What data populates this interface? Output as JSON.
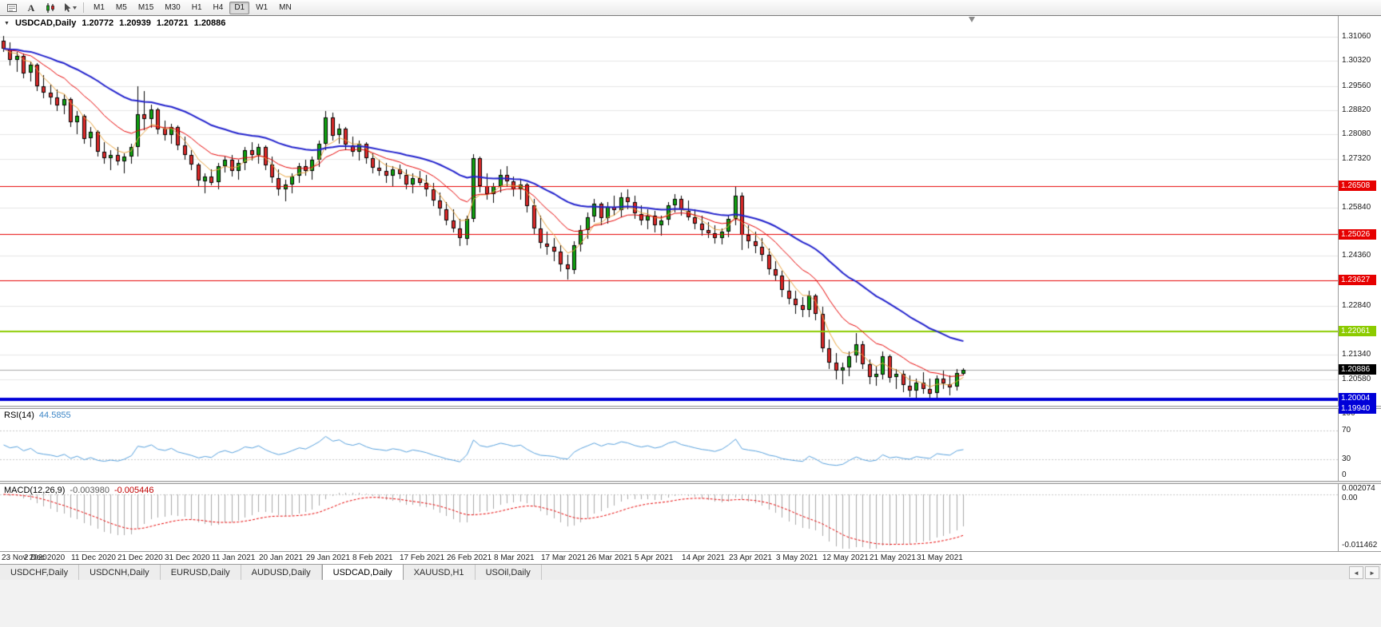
{
  "toolbar": {
    "icons": [
      {
        "name": "charts-list-icon"
      },
      {
        "name": "text-tool-icon"
      },
      {
        "name": "candles-chart-icon"
      },
      {
        "name": "cursor-tool-icon"
      }
    ],
    "timeframes": [
      {
        "label": "M1",
        "active": false
      },
      {
        "label": "M5",
        "active": false
      },
      {
        "label": "M15",
        "active": false
      },
      {
        "label": "M30",
        "active": false
      },
      {
        "label": "H1",
        "active": false
      },
      {
        "label": "H4",
        "active": false
      },
      {
        "label": "D1",
        "active": true
      },
      {
        "label": "W1",
        "active": false
      },
      {
        "label": "MN",
        "active": false
      }
    ]
  },
  "chart": {
    "symbol_label": "USDCAD,Daily",
    "symbol_dropdown_icon": "▼",
    "ohlc": {
      "open": "1.20772",
      "high": "1.20939",
      "low": "1.20721",
      "close": "1.20886"
    },
    "colors": {
      "up": "#0fa30f",
      "down": "#dd2a2a",
      "outline": "#000000",
      "grid": "#e6e6e6"
    },
    "bid_line": {
      "value": 1.20886,
      "color": "#a8a8a8"
    },
    "hlines": [
      {
        "value": 1.26508,
        "color": "#e60000",
        "width": 1
      },
      {
        "value": 1.25026,
        "color": "#e60000",
        "width": 1
      },
      {
        "value": 1.23627,
        "color": "#e60000",
        "width": 1
      },
      {
        "value": 1.22061,
        "color": "#8ccb00",
        "width": 2
      },
      {
        "value": 1.20004,
        "color": "#0000d8",
        "width": 2
      },
      {
        "value": 1.1994,
        "color": "#0000d8",
        "width": 2
      }
    ],
    "price_axis": {
      "ticks": [
        {
          "label": "1.31060",
          "value": 1.3106
        },
        {
          "label": "1.30320",
          "value": 1.3032
        },
        {
          "label": "1.29560",
          "value": 1.2956
        },
        {
          "label": "1.28820",
          "value": 1.2882
        },
        {
          "label": "1.28080",
          "value": 1.2808
        },
        {
          "label": "1.27320",
          "value": 1.2732
        },
        {
          "label": "1.25840",
          "value": 1.2584
        },
        {
          "label": "1.24360",
          "value": 1.2436
        },
        {
          "label": "1.22840",
          "value": 1.2284
        },
        {
          "label": "1.21340",
          "value": 1.2134
        },
        {
          "label": "1.20580",
          "value": 1.2058
        }
      ],
      "line_labels": [
        {
          "label": "1.26508",
          "value": 1.26508,
          "bg": "#e60000"
        },
        {
          "label": "1.25026",
          "value": 1.25026,
          "bg": "#e60000"
        },
        {
          "label": "1.23627",
          "value": 1.23627,
          "bg": "#e60000"
        },
        {
          "label": "1.22061",
          "value": 1.22061,
          "bg": "#8ccb00"
        },
        {
          "label": "1.20886",
          "value": 1.20886,
          "bg": "#000000"
        },
        {
          "label": "1.20004",
          "value": 1.20004,
          "bg": "#0000d8"
        },
        {
          "label": "1.19940",
          "value": 1.1994,
          "bg": "#0000d8"
        }
      ]
    }
  },
  "chart_data": {
    "type": "candlestick",
    "symbol": "USDCAD",
    "timeframe": "Daily",
    "ylim": [
      1.1978,
      1.317
    ],
    "overlays": [
      {
        "name": "MA fast",
        "period": 5,
        "color": "#e8a33d",
        "width": 1
      },
      {
        "name": "MA medium",
        "period": 13,
        "color": "#e60000",
        "width": 1
      },
      {
        "name": "MA slow",
        "period": 34,
        "color": "#2222cc",
        "width": 2
      }
    ],
    "date_labels": [
      {
        "label": "23 Nov 2020",
        "index": 0
      },
      {
        "label": "2 Dec 2020",
        "index": 7
      },
      {
        "label": "11 Dec 2020",
        "index": 14
      },
      {
        "label": "21 Dec 2020",
        "index": 21
      },
      {
        "label": "31 Dec 2020",
        "index": 28
      },
      {
        "label": "11 Jan 2021",
        "index": 35
      },
      {
        "label": "20 Jan 2021",
        "index": 42
      },
      {
        "label": "29 Jan 2021",
        "index": 49
      },
      {
        "label": "8 Feb 2021",
        "index": 56
      },
      {
        "label": "17 Feb 2021",
        "index": 63
      },
      {
        "label": "26 Feb 2021",
        "index": 70
      },
      {
        "label": "8 Mar 2021",
        "index": 77
      },
      {
        "label": "17 Mar 2021",
        "index": 84
      },
      {
        "label": "26 Mar 2021",
        "index": 91
      },
      {
        "label": "5 Apr 2021",
        "index": 98
      },
      {
        "label": "14 Apr 2021",
        "index": 105
      },
      {
        "label": "23 Apr 2021",
        "index": 112
      },
      {
        "label": "3 May 2021",
        "index": 119
      },
      {
        "label": "12 May 2021",
        "index": 126
      },
      {
        "label": "21 May 2021",
        "index": 133
      },
      {
        "label": "31 May 2021",
        "index": 140
      }
    ],
    "candles": [
      [
        1.3095,
        1.3108,
        1.306,
        1.307
      ],
      [
        1.307,
        1.309,
        1.302,
        1.3035
      ],
      [
        1.3035,
        1.306,
        1.3,
        1.3048
      ],
      [
        1.3048,
        1.3055,
        1.298,
        1.2995
      ],
      [
        1.2995,
        1.303,
        1.297,
        1.302
      ],
      [
        1.302,
        1.3025,
        1.294,
        1.2955
      ],
      [
        1.2955,
        1.299,
        1.292,
        1.2935
      ],
      [
        1.2935,
        1.296,
        1.29,
        1.292
      ],
      [
        1.292,
        1.2945,
        1.288,
        1.2895
      ],
      [
        1.2895,
        1.293,
        1.287,
        1.2915
      ],
      [
        1.2915,
        1.292,
        1.283,
        1.2845
      ],
      [
        1.2845,
        1.288,
        1.281,
        1.2865
      ],
      [
        1.2865,
        1.287,
        1.278,
        1.2795
      ],
      [
        1.2795,
        1.283,
        1.277,
        1.2815
      ],
      [
        1.2815,
        1.282,
        1.274,
        1.2755
      ],
      [
        1.2755,
        1.2785,
        1.272,
        1.2735
      ],
      [
        1.2735,
        1.276,
        1.27,
        1.2745
      ],
      [
        1.2745,
        1.277,
        1.2715,
        1.2725
      ],
      [
        1.2725,
        1.275,
        1.269,
        1.274
      ],
      [
        1.274,
        1.278,
        1.272,
        1.277
      ],
      [
        1.277,
        1.2955,
        1.274,
        1.287
      ],
      [
        1.287,
        1.294,
        1.282,
        1.2855
      ],
      [
        1.2855,
        1.29,
        1.283,
        1.2885
      ],
      [
        1.2885,
        1.289,
        1.281,
        1.2825
      ],
      [
        1.2825,
        1.285,
        1.279,
        1.2805
      ],
      [
        1.2805,
        1.284,
        1.278,
        1.283
      ],
      [
        1.283,
        1.2835,
        1.276,
        1.2775
      ],
      [
        1.2775,
        1.28,
        1.273,
        1.2745
      ],
      [
        1.2745,
        1.276,
        1.27,
        1.2715
      ],
      [
        1.2715,
        1.272,
        1.265,
        1.2665
      ],
      [
        1.2665,
        1.269,
        1.263,
        1.268
      ],
      [
        1.268,
        1.27,
        1.265,
        1.266
      ],
      [
        1.266,
        1.272,
        1.264,
        1.271
      ],
      [
        1.271,
        1.274,
        1.269,
        1.273
      ],
      [
        1.273,
        1.2745,
        1.268,
        1.2695
      ],
      [
        1.2695,
        1.273,
        1.267,
        1.272
      ],
      [
        1.272,
        1.277,
        1.27,
        1.276
      ],
      [
        1.276,
        1.2785,
        1.273,
        1.2745
      ],
      [
        1.2745,
        1.278,
        1.272,
        1.277
      ],
      [
        1.277,
        1.2775,
        1.27,
        1.2715
      ],
      [
        1.2715,
        1.274,
        1.266,
        1.2675
      ],
      [
        1.2675,
        1.27,
        1.262,
        1.264
      ],
      [
        1.264,
        1.267,
        1.2605,
        1.2655
      ],
      [
        1.2655,
        1.269,
        1.263,
        1.268
      ],
      [
        1.268,
        1.272,
        1.266,
        1.271
      ],
      [
        1.271,
        1.273,
        1.268,
        1.2695
      ],
      [
        1.2695,
        1.274,
        1.267,
        1.273
      ],
      [
        1.273,
        1.279,
        1.271,
        1.278
      ],
      [
        1.278,
        1.288,
        1.276,
        1.286
      ],
      [
        1.286,
        1.2875,
        1.279,
        1.2805
      ],
      [
        1.2805,
        1.284,
        1.278,
        1.2825
      ],
      [
        1.2825,
        1.283,
        1.276,
        1.2775
      ],
      [
        1.2775,
        1.28,
        1.274,
        1.2755
      ],
      [
        1.2755,
        1.279,
        1.273,
        1.278
      ],
      [
        1.278,
        1.2785,
        1.272,
        1.2735
      ],
      [
        1.2735,
        1.275,
        1.269,
        1.2705
      ],
      [
        1.2705,
        1.273,
        1.268,
        1.2695
      ],
      [
        1.2695,
        1.272,
        1.266,
        1.268
      ],
      [
        1.268,
        1.271,
        1.265,
        1.27
      ],
      [
        1.27,
        1.2715,
        1.267,
        1.2685
      ],
      [
        1.2685,
        1.27,
        1.264,
        1.2655
      ],
      [
        1.2655,
        1.269,
        1.263,
        1.2675
      ],
      [
        1.2675,
        1.2695,
        1.265,
        1.266
      ],
      [
        1.266,
        1.2685,
        1.262,
        1.264
      ],
      [
        1.264,
        1.266,
        1.259,
        1.2605
      ],
      [
        1.2605,
        1.263,
        1.256,
        1.258
      ],
      [
        1.258,
        1.26,
        1.253,
        1.2545
      ],
      [
        1.2545,
        1.258,
        1.251,
        1.252
      ],
      [
        1.252,
        1.255,
        1.2468,
        1.249
      ],
      [
        1.249,
        1.256,
        1.247,
        1.255
      ],
      [
        1.255,
        1.2747,
        1.254,
        1.2735
      ],
      [
        1.2735,
        1.274,
        1.263,
        1.265
      ],
      [
        1.265,
        1.269,
        1.261,
        1.2625
      ],
      [
        1.2625,
        1.266,
        1.26,
        1.265
      ],
      [
        1.265,
        1.27,
        1.263,
        1.2685
      ],
      [
        1.2685,
        1.271,
        1.265,
        1.2665
      ],
      [
        1.2665,
        1.268,
        1.262,
        1.264
      ],
      [
        1.264,
        1.267,
        1.261,
        1.2655
      ],
      [
        1.2655,
        1.266,
        1.257,
        1.259
      ],
      [
        1.259,
        1.261,
        1.25,
        1.252
      ],
      [
        1.252,
        1.256,
        1.246,
        1.2475
      ],
      [
        1.2475,
        1.251,
        1.244,
        1.2465
      ],
      [
        1.2465,
        1.249,
        1.242,
        1.245
      ],
      [
        1.245,
        1.247,
        1.239,
        1.241
      ],
      [
        1.241,
        1.244,
        1.2365,
        1.2395
      ],
      [
        1.2395,
        1.248,
        1.238,
        1.247
      ],
      [
        1.247,
        1.253,
        1.245,
        1.2515
      ],
      [
        1.2515,
        1.257,
        1.249,
        1.2555
      ],
      [
        1.2555,
        1.261,
        1.254,
        1.2595
      ],
      [
        1.2595,
        1.26,
        1.253,
        1.255
      ],
      [
        1.255,
        1.26,
        1.2535,
        1.2585
      ],
      [
        1.2585,
        1.262,
        1.256,
        1.2575
      ],
      [
        1.2575,
        1.263,
        1.2555,
        1.2615
      ],
      [
        1.2615,
        1.264,
        1.258,
        1.26
      ],
      [
        1.26,
        1.262,
        1.255,
        1.2565
      ],
      [
        1.2565,
        1.259,
        1.253,
        1.2545
      ],
      [
        1.2545,
        1.258,
        1.252,
        1.256
      ],
      [
        1.256,
        1.2575,
        1.251,
        1.253
      ],
      [
        1.253,
        1.256,
        1.25,
        1.2545
      ],
      [
        1.2545,
        1.26,
        1.253,
        1.259
      ],
      [
        1.259,
        1.2625,
        1.257,
        1.261
      ],
      [
        1.261,
        1.262,
        1.256,
        1.2575
      ],
      [
        1.2575,
        1.2605,
        1.2545,
        1.2555
      ],
      [
        1.2555,
        1.258,
        1.252,
        1.2535
      ],
      [
        1.2535,
        1.256,
        1.25,
        1.2515
      ],
      [
        1.2515,
        1.254,
        1.249,
        1.2505
      ],
      [
        1.2505,
        1.253,
        1.2475,
        1.249
      ],
      [
        1.249,
        1.252,
        1.247,
        1.251
      ],
      [
        1.251,
        1.256,
        1.2495,
        1.255
      ],
      [
        1.255,
        1.265,
        1.253,
        1.262
      ],
      [
        1.262,
        1.263,
        1.2455,
        1.25
      ],
      [
        1.25,
        1.253,
        1.246,
        1.248
      ],
      [
        1.248,
        1.251,
        1.2445,
        1.2465
      ],
      [
        1.2465,
        1.249,
        1.242,
        1.244
      ],
      [
        1.244,
        1.246,
        1.238,
        1.2395
      ],
      [
        1.2395,
        1.242,
        1.236,
        1.2375
      ],
      [
        1.2375,
        1.239,
        1.231,
        1.233
      ],
      [
        1.233,
        1.2365,
        1.229,
        1.2305
      ],
      [
        1.2305,
        1.233,
        1.226,
        1.2285
      ],
      [
        1.2285,
        1.231,
        1.225,
        1.227
      ],
      [
        1.227,
        1.233,
        1.225,
        1.2315
      ],
      [
        1.2315,
        1.232,
        1.224,
        1.226
      ],
      [
        1.226,
        1.228,
        1.214,
        1.2155
      ],
      [
        1.2155,
        1.218,
        1.209,
        1.211
      ],
      [
        1.211,
        1.214,
        1.206,
        1.2085
      ],
      [
        1.2085,
        1.211,
        1.2045,
        1.2095
      ],
      [
        1.2095,
        1.2145,
        1.207,
        1.213
      ],
      [
        1.213,
        1.22,
        1.211,
        1.2165
      ],
      [
        1.2165,
        1.2175,
        1.209,
        1.2105
      ],
      [
        1.2105,
        1.212,
        1.2045,
        1.2065
      ],
      [
        1.2065,
        1.21,
        1.204,
        1.2075
      ],
      [
        1.2075,
        1.2145,
        1.206,
        1.213
      ],
      [
        1.213,
        1.2135,
        1.205,
        1.2065
      ],
      [
        1.2065,
        1.209,
        1.203,
        1.2075
      ],
      [
        1.2075,
        1.2085,
        1.202,
        1.204
      ],
      [
        1.204,
        1.207,
        1.2005,
        1.2025
      ],
      [
        1.2025,
        1.206,
        1.2,
        1.205
      ],
      [
        1.205,
        1.208,
        1.2015,
        1.203
      ],
      [
        1.203,
        1.206,
        1.2,
        1.2015
      ],
      [
        1.2015,
        1.207,
        1.1999,
        1.206
      ],
      [
        1.206,
        1.2085,
        1.203,
        1.2045
      ],
      [
        1.2045,
        1.207,
        1.201,
        1.2035
      ],
      [
        1.2035,
        1.209,
        1.2025,
        1.20772
      ],
      [
        1.20772,
        1.20939,
        1.20721,
        1.20886
      ]
    ]
  },
  "rsi": {
    "title": "RSI(14)",
    "value": "44.5855",
    "period": 14,
    "range": [
      0,
      100
    ],
    "levels": [
      70,
      30
    ],
    "line_color": "#57a0dc",
    "level_color": "#c8c8c8",
    "axis_labels": [
      {
        "label": "100",
        "value": 100
      },
      {
        "label": "70",
        "value": 70
      },
      {
        "label": "30",
        "value": 30
      },
      {
        "label": "0",
        "value": 0
      }
    ]
  },
  "macd": {
    "title": "MACD(12,26,9)",
    "value_main": "-0.003980",
    "value_signal": "-0.005446",
    "fast": 12,
    "slow": 26,
    "signal": 9,
    "scale_max": 0.002074,
    "scale_min": -0.011462,
    "axis_max_label": "0.002074",
    "axis_zero_label": "0.00",
    "axis_min_label": "-0.011462",
    "hist_color": "#a8a8a8",
    "signal_color": "#e60000",
    "zero_line_color": "#c8c8c8"
  },
  "tabs": {
    "items": [
      {
        "label": "USDCHF,Daily",
        "active": false
      },
      {
        "label": "USDCNH,Daily",
        "active": false
      },
      {
        "label": "EURUSD,Daily",
        "active": false
      },
      {
        "label": "AUDUSD,Daily",
        "active": false
      },
      {
        "label": "USDCAD,Daily",
        "active": true
      },
      {
        "label": "XAUUSD,H1",
        "active": false
      },
      {
        "label": "USOil,Daily",
        "active": false
      }
    ],
    "scroll_left_icon": "◄",
    "scroll_right_icon": "►"
  }
}
